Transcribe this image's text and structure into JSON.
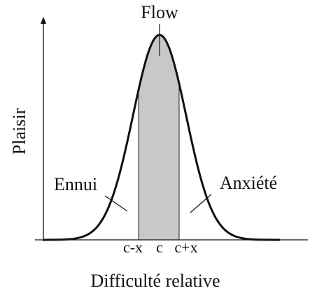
{
  "labels": {
    "peak": "Flow",
    "y_axis": "Plaisir",
    "left": "Ennui",
    "right": "Anxiété",
    "x_axis": "Difficulté relative",
    "ticks": [
      "c-x",
      "c",
      "c+x"
    ]
  }
}
